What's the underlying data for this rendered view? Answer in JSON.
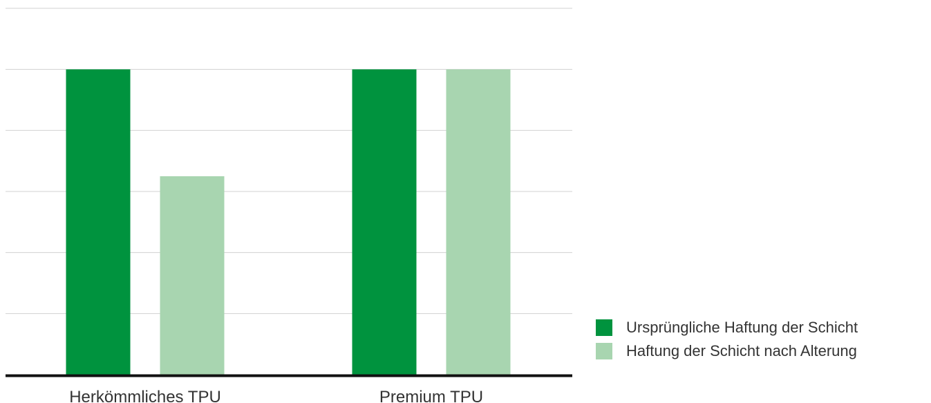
{
  "chart_data": {
    "type": "bar",
    "categories": [
      "Herkömmliches TPU",
      "Premium TPU"
    ],
    "series": [
      {
        "name": "Ursprüngliche Haftung der Schicht",
        "values": [
          100,
          100
        ],
        "color": "#00933E"
      },
      {
        "name": "Haftung der Schicht nach Alterung",
        "values": [
          65,
          100
        ],
        "color": "#A8D5B0"
      }
    ],
    "ylim": [
      0,
      120
    ],
    "grid": true,
    "legend_position": "bottom-right"
  }
}
